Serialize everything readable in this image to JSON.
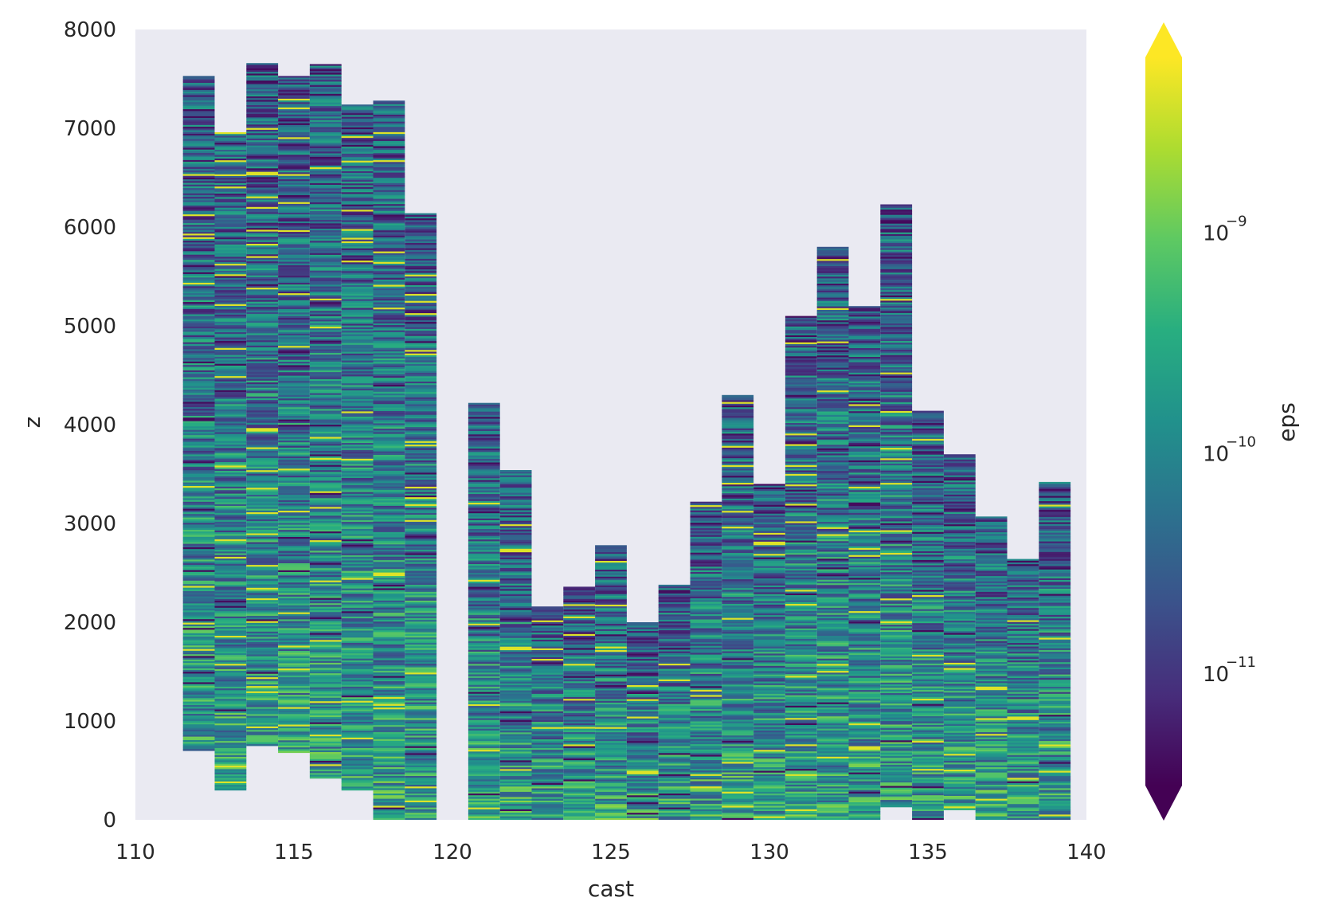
{
  "chart_data": {
    "type": "heatmap",
    "title": "",
    "xlabel": "cast",
    "ylabel": "z",
    "xlim": [
      110,
      140
    ],
    "ylim": [
      0,
      8000
    ],
    "x_ticks": [
      "110",
      "115",
      "120",
      "125",
      "130",
      "135",
      "140"
    ],
    "y_ticks": [
      "0",
      "1000",
      "2000",
      "3000",
      "4000",
      "5000",
      "6000",
      "7000",
      "8000"
    ],
    "grid": false,
    "background_color": "#eaeaf2",
    "colormap": "viridis",
    "colorbar": {
      "label": "eps",
      "scale": "log",
      "extend": "both",
      "range": [
        3e-12,
        6e-09
      ],
      "ticks": [
        {
          "value": 1e-11,
          "base": "10",
          "exponent": "−11"
        },
        {
          "value": 1e-10,
          "base": "10",
          "exponent": "−10"
        },
        {
          "value": 1e-09,
          "base": "10",
          "exponent": "−9"
        }
      ]
    },
    "casts": [
      {
        "cast": 112,
        "z_min": 700,
        "z_max": 7530
      },
      {
        "cast": 113,
        "z_min": 300,
        "z_max": 6960
      },
      {
        "cast": 114,
        "z_min": 750,
        "z_max": 7660
      },
      {
        "cast": 115,
        "z_min": 680,
        "z_max": 7530
      },
      {
        "cast": 116,
        "z_min": 420,
        "z_max": 7650
      },
      {
        "cast": 117,
        "z_min": 300,
        "z_max": 7240
      },
      {
        "cast": 118,
        "z_min": 0,
        "z_max": 7280
      },
      {
        "cast": 119,
        "z_min": 0,
        "z_max": 6140
      },
      {
        "cast": 121,
        "z_min": 0,
        "z_max": 4220
      },
      {
        "cast": 122,
        "z_min": 0,
        "z_max": 3540
      },
      {
        "cast": 123,
        "z_min": 0,
        "z_max": 2160
      },
      {
        "cast": 124,
        "z_min": 0,
        "z_max": 2360
      },
      {
        "cast": 125,
        "z_min": 0,
        "z_max": 2780
      },
      {
        "cast": 126,
        "z_min": 0,
        "z_max": 2000
      },
      {
        "cast": 127,
        "z_min": 0,
        "z_max": 2380
      },
      {
        "cast": 128,
        "z_min": 0,
        "z_max": 3220
      },
      {
        "cast": 129,
        "z_min": 0,
        "z_max": 4300
      },
      {
        "cast": 130,
        "z_min": 0,
        "z_max": 3400
      },
      {
        "cast": 131,
        "z_min": 0,
        "z_max": 5100
      },
      {
        "cast": 132,
        "z_min": 0,
        "z_max": 5800
      },
      {
        "cast": 133,
        "z_min": 0,
        "z_max": 5200
      },
      {
        "cast": 134,
        "z_min": 130,
        "z_max": 6230
      },
      {
        "cast": 135,
        "z_min": 0,
        "z_max": 4140
      },
      {
        "cast": 136,
        "z_min": 100,
        "z_max": 3700
      },
      {
        "cast": 137,
        "z_min": 0,
        "z_max": 3070
      },
      {
        "cast": 138,
        "z_min": 0,
        "z_max": 2640
      },
      {
        "cast": 139,
        "z_min": 0,
        "z_max": 3420
      }
    ]
  }
}
